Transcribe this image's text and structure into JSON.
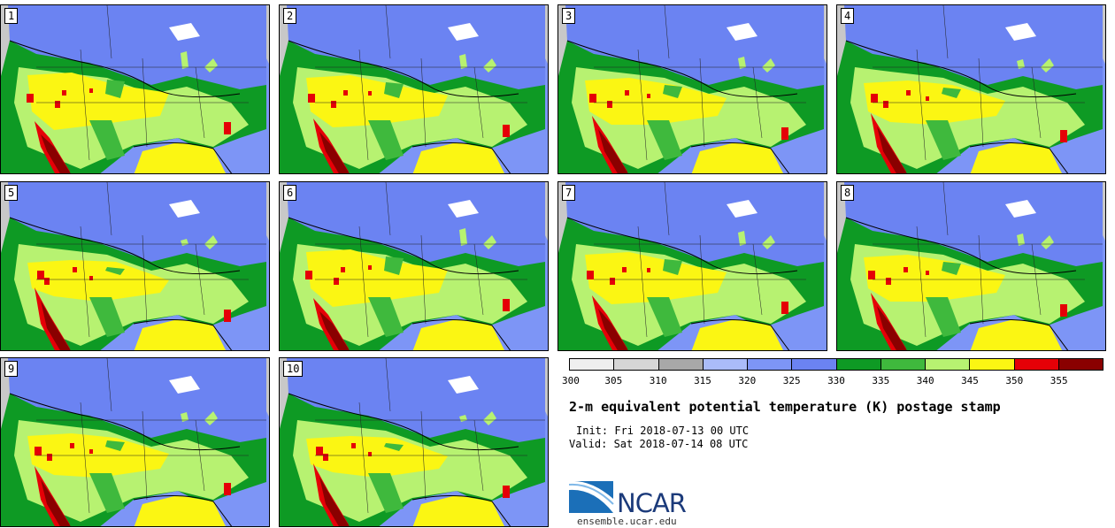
{
  "panels": [
    {
      "label": "1"
    },
    {
      "label": "2"
    },
    {
      "label": "3"
    },
    {
      "label": "4"
    },
    {
      "label": "5"
    },
    {
      "label": "6"
    },
    {
      "label": "7"
    },
    {
      "label": "8"
    },
    {
      "label": "9"
    },
    {
      "label": "10"
    }
  ],
  "colorbar": {
    "colors": [
      "#efefef",
      "#d6d6d6",
      "#a8a8a8",
      "#aabcf9",
      "#7d95f6",
      "#6b83f2",
      "#0e9a24",
      "#3fb93d",
      "#b7f271",
      "#fbf613",
      "#e50007",
      "#8a0000"
    ],
    "ticks": [
      "300",
      "305",
      "310",
      "315",
      "320",
      "325",
      "330",
      "335",
      "340",
      "345",
      "350",
      "355"
    ]
  },
  "map_colors": {
    "ocean": "#7d95f6",
    "coast_gray": "#c8c8c8",
    "north_blue": "#6b83f2",
    "dark_green": "#0e9a24",
    "mid_green": "#3fb93d",
    "light_green": "#b7f271",
    "yellow": "#fbf613",
    "red": "#e50007",
    "dark_red": "#8a0000"
  },
  "title": "2-m equivalent potential temperature (K) postage stamp",
  "init": "Init: Fri 2018-07-13 00 UTC",
  "valid": "Valid: Sat 2018-07-14 08 UTC",
  "logo": {
    "text": "NCAR",
    "site": "ensemble.ucar.edu"
  }
}
